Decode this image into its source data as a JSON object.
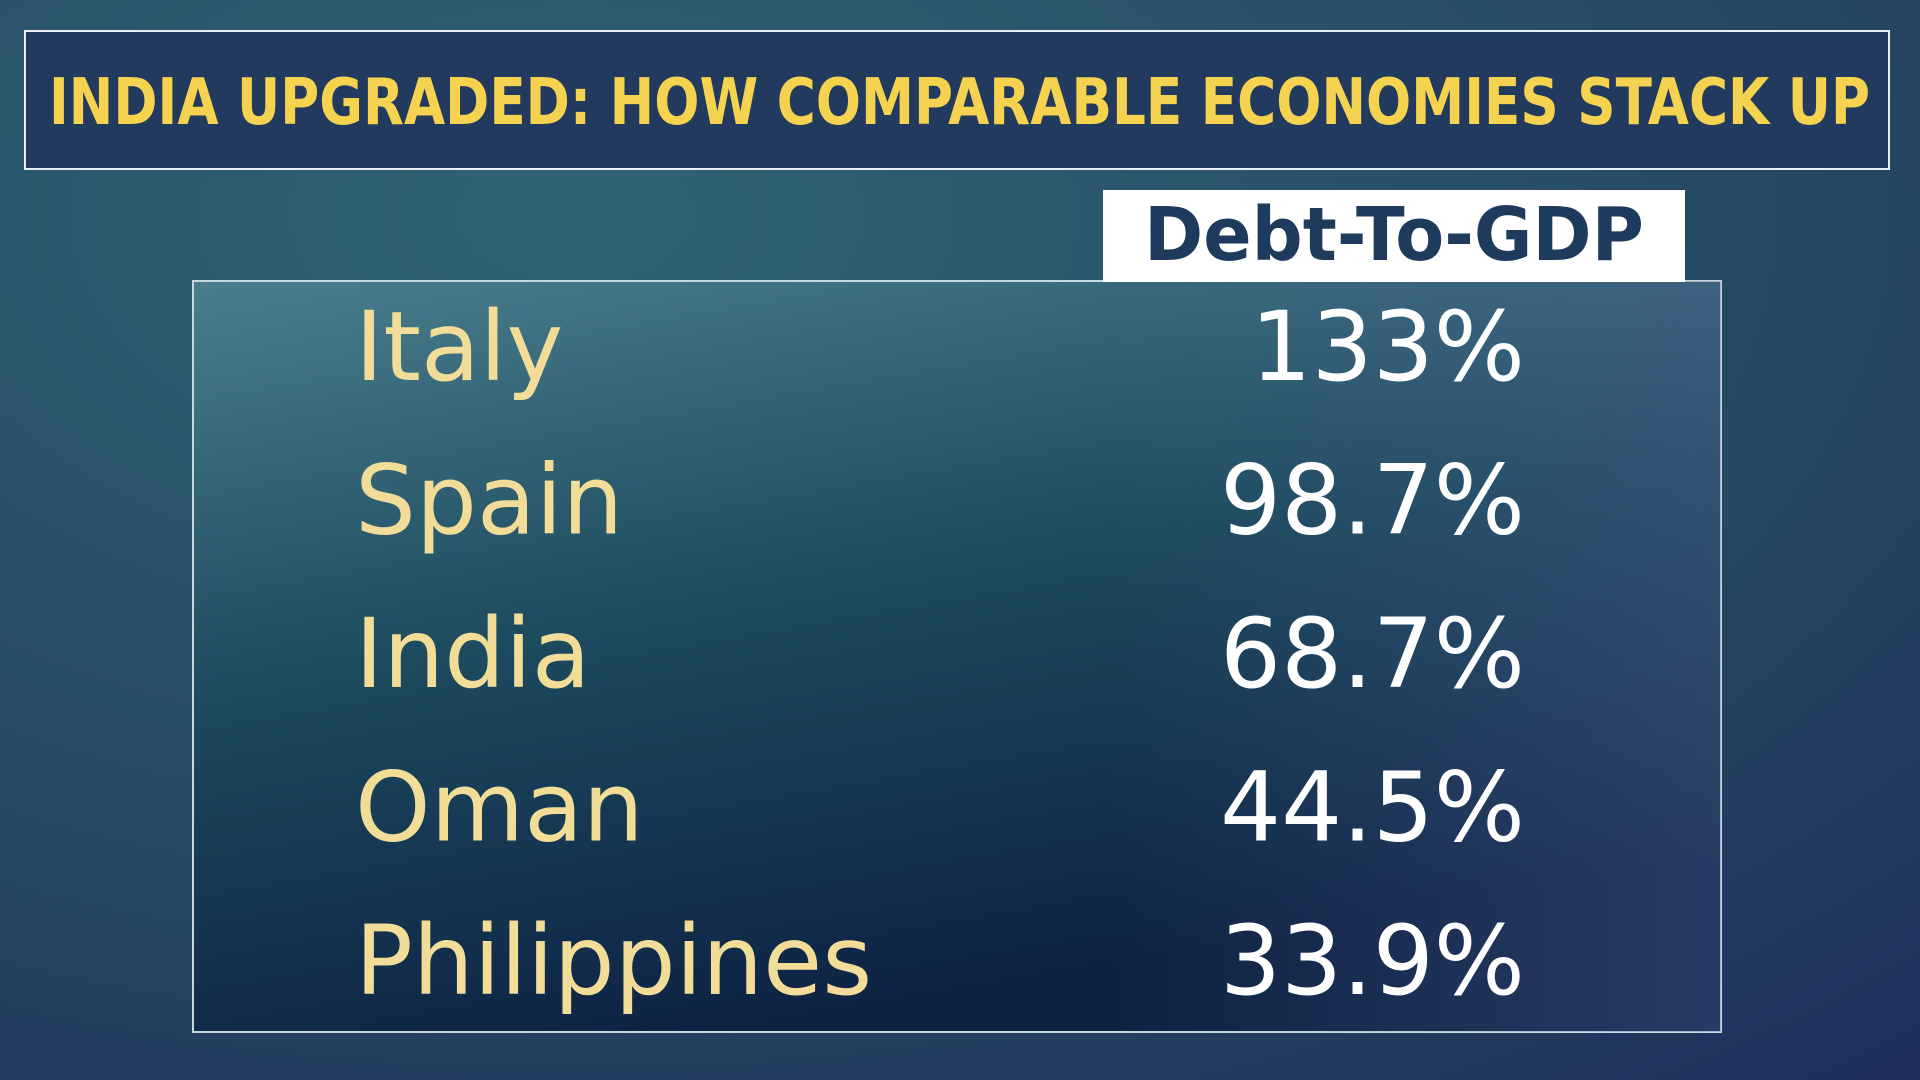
{
  "header": {
    "title": "INDIA UPGRADED: HOW COMPARABLE ECONOMIES STACK UP"
  },
  "table": {
    "column_header": "Debt-To-GDP",
    "rows": [
      [
        "Italy",
        "133%"
      ],
      [
        "Spain",
        "98.7%"
      ],
      [
        "India",
        "68.7%"
      ],
      [
        "Oman",
        "44.5%"
      ],
      [
        "Philippines",
        "33.9%"
      ]
    ]
  }
}
